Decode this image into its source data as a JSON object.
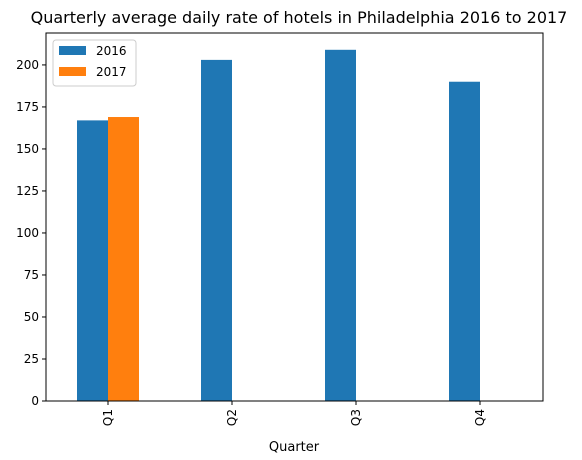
{
  "chart_data": {
    "type": "bar",
    "title": "Quarterly average daily rate of hotels in Philadelphia 2016 to 2017",
    "xlabel": "Quarter",
    "ylabel": "",
    "categories": [
      "Q1",
      "Q2",
      "Q3",
      "Q4"
    ],
    "series": [
      {
        "name": "2016",
        "values": [
          167,
          203,
          209,
          190
        ],
        "color": "#1f77b4"
      },
      {
        "name": "2017",
        "values": [
          169,
          null,
          null,
          null
        ],
        "color": "#ff7f0e"
      }
    ],
    "ylim": [
      0,
      219
    ],
    "yticks": [
      0,
      25,
      50,
      75,
      100,
      125,
      150,
      175,
      200
    ],
    "grid": false,
    "legend": "top-left"
  }
}
